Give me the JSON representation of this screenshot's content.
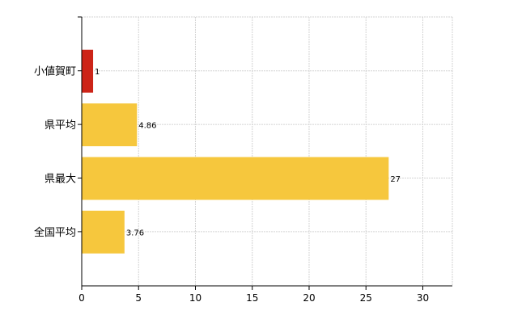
{
  "chart_data": {
    "type": "bar",
    "orientation": "horizontal",
    "categories": [
      "小値賀町",
      "県平均",
      "県最大",
      "全国平均"
    ],
    "values": [
      1,
      4.86,
      27,
      3.76
    ],
    "value_labels": [
      "1",
      "4.86",
      "27",
      "3.76"
    ],
    "bar_colors": [
      "#cc2418",
      "#f6c73d",
      "#f6c73d",
      "#f6c73d"
    ],
    "xlim": [
      0,
      32.6
    ],
    "xticks": [
      0,
      5,
      10,
      15,
      20,
      25,
      30
    ],
    "grid": true,
    "legend": "none"
  },
  "colors": {
    "highlight": "#cc2418",
    "bar": "#f6c73d",
    "grid": "#d3d3d3",
    "axis": "#000000"
  }
}
